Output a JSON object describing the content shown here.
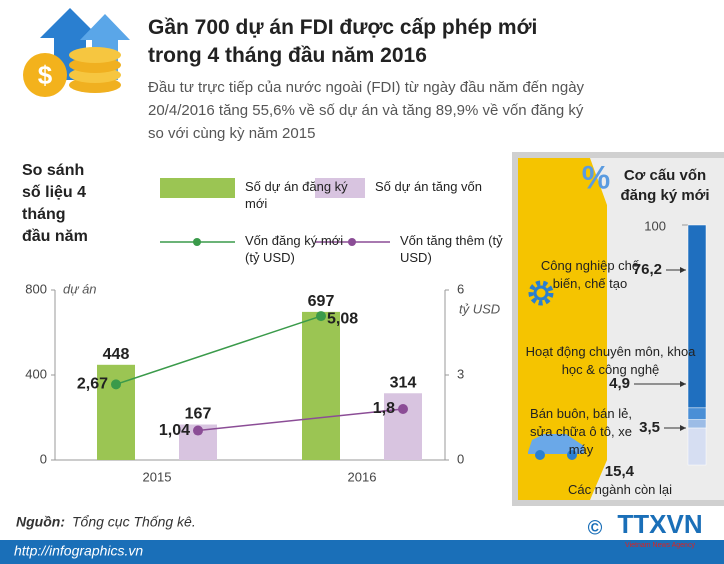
{
  "header": {
    "title": "Gần 700 dự án FDI được cấp phép mới trong 4 tháng đầu năm 2016",
    "subtitle": "Đầu tư trực tiếp của nước ngoài (FDI) từ ngày đầu năm đến ngày 20/4/2016 tăng 55,6% về số dự án và tăng 89,9% về vốn đăng ký so với cùng kỳ năm 2015"
  },
  "chart_data": [
    {
      "type": "bar",
      "title": "So sánh số liệu 4 tháng đầu năm",
      "categories": [
        "2015",
        "2016"
      ],
      "ylabel": "dự án",
      "ylim": [
        0,
        800
      ],
      "yticks": [
        0,
        400,
        800
      ],
      "y2label": "tỷ USD",
      "y2lim": [
        0,
        6
      ],
      "y2ticks": [
        0,
        3,
        6
      ],
      "series": [
        {
          "name": "Số dự án đăng ký mới",
          "type": "bar",
          "color": "#9bc553",
          "values": [
            448,
            697
          ]
        },
        {
          "name": "Số dự án tăng vốn",
          "type": "bar",
          "color": "#d8c4e0",
          "values": [
            167,
            314
          ]
        },
        {
          "name": "Vốn đăng ký mới (tỷ USD)",
          "type": "line",
          "axis": "y2",
          "color": "#3a9a4a",
          "values": [
            2.67,
            5.08
          ],
          "value_labels": [
            "2,67",
            "5,08"
          ]
        },
        {
          "name": "Vốn tăng thêm (tỷ USD)",
          "type": "line",
          "axis": "y2",
          "color": "#8b4d96",
          "values": [
            1.04,
            1.8
          ],
          "value_labels": [
            "1,04",
            "1,8"
          ]
        }
      ]
    },
    {
      "type": "stacked_bar",
      "title": "Cơ cấu vốn đăng ký mới",
      "unit": "%",
      "ylim": [
        0,
        100
      ],
      "yticks": [
        100
      ],
      "series": [
        {
          "name": "Công nghiệp chế biến, chế tạo",
          "color": "#1f6fbf",
          "values": [
            76.2
          ],
          "value_labels": [
            "76,2"
          ]
        },
        {
          "name": "Hoạt động chuyên môn, khoa học & công nghệ",
          "color": "#4a8fd6",
          "values": [
            4.9
          ],
          "value_labels": [
            "4,9"
          ]
        },
        {
          "name": "Bán buôn, bán lẻ, sửa chữa ô tô, xe máy",
          "color": "#9cbce6",
          "values": [
            3.5
          ],
          "value_labels": [
            "3,5"
          ]
        },
        {
          "name": "Các ngành còn lại",
          "color": "#d6def2",
          "values": [
            15.4
          ],
          "value_labels": [
            "15,4"
          ]
        }
      ]
    }
  ],
  "footer": {
    "source_label": "Nguồn:",
    "source": "Tổng cục Thống kê.",
    "url": "http://infographics.vn",
    "copyright": "©",
    "logo": "TTXVN",
    "agency": "Vietnam News Agency"
  }
}
